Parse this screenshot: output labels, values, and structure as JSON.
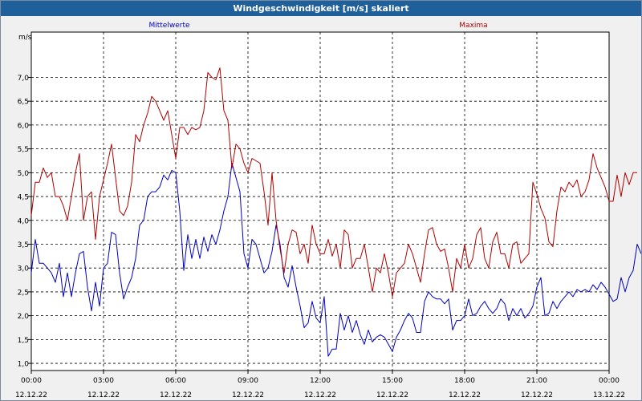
{
  "window": {
    "title": "Windgeschwindigkeit [m/s] skaliert"
  },
  "chart_data": {
    "type": "line",
    "title": "Windgeschwindigkeit [m/s] skaliert",
    "ylabel": "m/s",
    "xlabel": "",
    "ylim": [
      0.85,
      7.95
    ],
    "yticks": [
      1.0,
      1.5,
      2.0,
      2.5,
      3.0,
      3.5,
      4.0,
      4.5,
      5.0,
      5.5,
      6.0,
      6.5,
      7.0
    ],
    "ytick_labels": [
      "1,0",
      "1,5",
      "2,0",
      "2,5",
      "3,0",
      "3,5",
      "4,0",
      "4,5",
      "5,0",
      "5,5",
      "6,0",
      "6,5",
      "7,0"
    ],
    "xlim": [
      0,
      24
    ],
    "xticks": [
      {
        "hours": 0,
        "time": "00:00",
        "date": "12.12.22"
      },
      {
        "hours": 3,
        "time": "03:00",
        "date": "12.12.22"
      },
      {
        "hours": 6,
        "time": "06:00",
        "date": "12.12.22"
      },
      {
        "hours": 9,
        "time": "09:00",
        "date": "12.12.22"
      },
      {
        "hours": 12,
        "time": "12:00",
        "date": "12.12.22"
      },
      {
        "hours": 15,
        "time": "15:00",
        "date": "12.12.22"
      },
      {
        "hours": 18,
        "time": "18:00",
        "date": "12.12.22"
      },
      {
        "hours": 21,
        "time": "21:00",
        "date": "12.12.22"
      },
      {
        "hours": 24,
        "time": "00:00",
        "date": "13.12.22"
      }
    ],
    "grid": true,
    "legend": "top",
    "step_minutes": 10,
    "series": [
      {
        "name": "Mittelwerte",
        "color": "#0000c0",
        "values": [
          2.9,
          3.6,
          3.1,
          3.1,
          3.0,
          2.9,
          2.7,
          3.1,
          2.4,
          2.9,
          2.4,
          2.9,
          3.3,
          3.35,
          2.6,
          2.1,
          2.7,
          2.2,
          3.0,
          3.1,
          3.75,
          3.7,
          2.9,
          2.35,
          2.6,
          2.8,
          3.2,
          3.9,
          4.0,
          4.5,
          4.6,
          4.6,
          4.7,
          4.95,
          4.85,
          5.05,
          5.0,
          4.2,
          2.95,
          3.7,
          3.2,
          3.6,
          3.2,
          3.65,
          3.35,
          3.7,
          3.5,
          3.8,
          4.2,
          4.5,
          5.2,
          4.9,
          4.6,
          3.3,
          3.0,
          3.6,
          3.5,
          3.2,
          2.9,
          3.0,
          3.35,
          3.9,
          3.5,
          2.8,
          2.6,
          3.05,
          2.6,
          2.2,
          1.75,
          1.85,
          2.3,
          1.95,
          1.85,
          2.4,
          1.15,
          1.3,
          1.3,
          2.05,
          1.7,
          2.0,
          1.65,
          1.9,
          1.6,
          1.4,
          1.7,
          1.45,
          1.55,
          1.6,
          1.55,
          1.4,
          1.25,
          1.55,
          1.7,
          1.9,
          2.05,
          1.95,
          1.65,
          1.65,
          2.3,
          2.5,
          2.4,
          2.35,
          2.35,
          2.25,
          2.35,
          1.7,
          1.9,
          1.9,
          2.0,
          2.35,
          2.0,
          2.05,
          2.2,
          2.3,
          2.15,
          2.05,
          2.15,
          2.35,
          2.25,
          1.9,
          2.15,
          2.0,
          2.15,
          1.95,
          2.05,
          2.2,
          2.6,
          2.8,
          2.0,
          2.05,
          2.3,
          2.15,
          2.3,
          2.4,
          2.5,
          2.4,
          2.55,
          2.5,
          2.55,
          2.5,
          2.65,
          2.55,
          2.7,
          2.6,
          2.45,
          2.3,
          2.35,
          2.8,
          2.5,
          2.8,
          2.95,
          3.5,
          3.3
        ]
      },
      {
        "name": "Maxima",
        "color": "#b00000",
        "values": [
          4.1,
          4.8,
          4.8,
          5.1,
          4.9,
          5.0,
          4.5,
          4.5,
          4.3,
          4.0,
          4.5,
          5.0,
          5.4,
          4.0,
          4.5,
          4.6,
          3.6,
          4.5,
          4.85,
          5.2,
          5.6,
          4.9,
          4.2,
          4.1,
          4.3,
          4.8,
          5.8,
          5.65,
          6.0,
          6.25,
          6.6,
          6.5,
          6.3,
          6.1,
          6.3,
          5.8,
          5.3,
          5.95,
          5.95,
          5.8,
          5.95,
          5.9,
          5.95,
          6.3,
          7.1,
          7.0,
          6.95,
          7.2,
          6.3,
          6.1,
          5.1,
          5.6,
          5.5,
          5.2,
          5.0,
          5.3,
          5.25,
          5.2,
          4.6,
          3.9,
          5.0,
          4.0,
          3.4,
          2.9,
          3.5,
          3.8,
          3.75,
          3.3,
          3.5,
          3.1,
          3.9,
          3.5,
          3.3,
          3.3,
          3.6,
          3.25,
          3.5,
          3.0,
          3.8,
          3.7,
          3.0,
          3.2,
          3.2,
          3.5,
          3.0,
          2.5,
          3.0,
          2.9,
          3.3,
          2.9,
          2.4,
          2.9,
          3.0,
          3.1,
          3.5,
          3.3,
          3.0,
          2.7,
          3.3,
          3.8,
          3.85,
          3.5,
          3.35,
          3.4,
          3.0,
          2.5,
          3.2,
          3.0,
          3.5,
          3.0,
          3.2,
          3.7,
          3.85,
          3.2,
          3.0,
          3.55,
          3.75,
          3.3,
          3.3,
          3.0,
          3.5,
          3.55,
          3.1,
          3.2,
          3.3,
          4.8,
          4.55,
          4.25,
          4.05,
          3.55,
          3.45,
          4.2,
          4.7,
          4.6,
          4.8,
          4.7,
          4.85,
          4.5,
          4.6,
          4.85,
          5.4,
          5.1,
          4.9,
          4.7,
          4.4,
          4.4,
          4.95,
          4.5,
          5.0,
          4.75,
          5.0,
          5.0
        ]
      }
    ]
  }
}
